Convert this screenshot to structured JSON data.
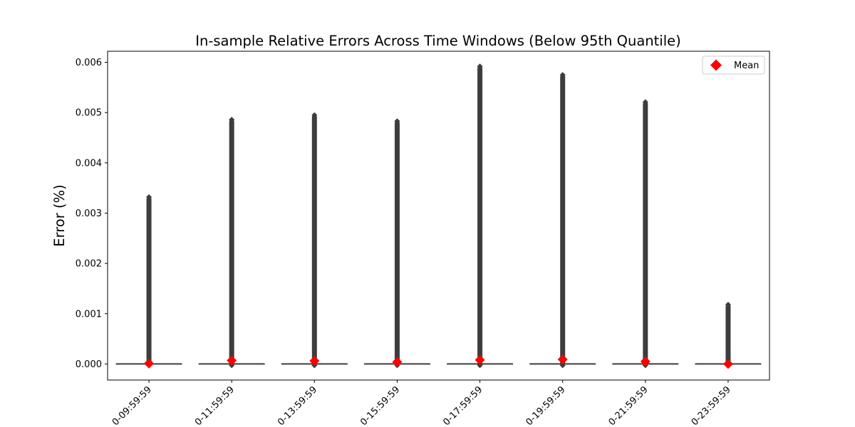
{
  "chart_data": {
    "type": "box",
    "title": "In-sample Relative Errors Across Time Windows (Below 95th Quantile)",
    "xlabel": "",
    "ylabel": "Error (%)",
    "ylim": [
      -0.00032,
      0.00622
    ],
    "y_ticks": [
      "0.000",
      "0.001",
      "0.002",
      "0.003",
      "0.004",
      "0.005",
      "0.006"
    ],
    "y_tick_values": [
      0.0,
      0.001,
      0.002,
      0.003,
      0.004,
      0.005,
      0.006
    ],
    "categories": [
      "0-09:59:59",
      "0-11:59:59",
      "0-13:59:59",
      "0-15:59:59",
      "0-17:59:59",
      "0-19:59:59",
      "0-21:59:59",
      "0-23:59:59"
    ],
    "x_tick_rotation_deg": 45,
    "median": [
      0,
      0,
      0,
      0,
      0,
      0,
      0,
      0
    ],
    "outlier_max": [
      0.00332,
      0.00486,
      0.00495,
      0.00483,
      0.00592,
      0.00575,
      0.00521,
      0.00118
    ],
    "mean": [
      1e-05,
      7e-05,
      6e-05,
      4e-05,
      8e-05,
      9e-05,
      5e-05,
      0.0
    ],
    "mean_marker_color": "#ff0000",
    "box_color": "#3d3d3d",
    "legend": {
      "position": "upper right",
      "entries": [
        {
          "label": "Mean",
          "marker": "diamond",
          "color": "#ff0000"
        }
      ]
    },
    "grid": false
  }
}
